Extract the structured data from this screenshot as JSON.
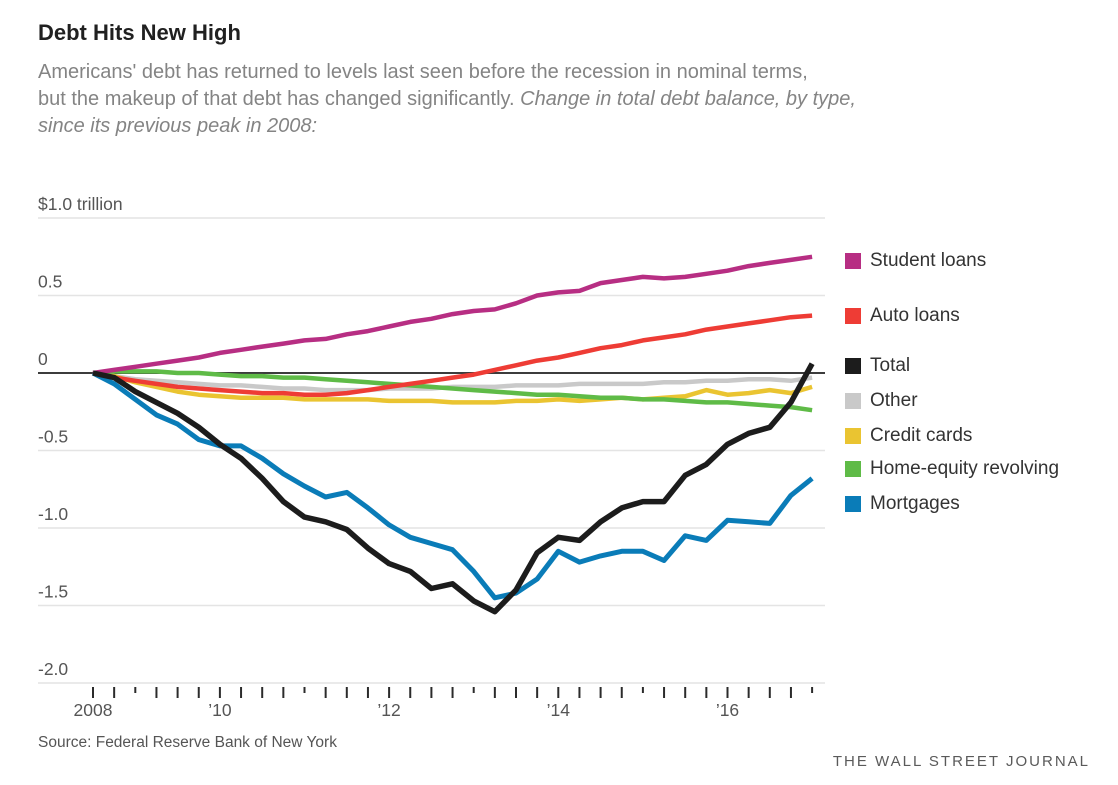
{
  "header": {
    "title": "Debt Hits New High",
    "subtitle_lines": [
      {
        "regular": "Americans' debt has returned to levels last seen before the recession in nominal terms,",
        "italic": ""
      },
      {
        "regular": "but the makeup of that debt has changed significantly. ",
        "italic": "Change in total debt balance, by type,"
      },
      {
        "regular": "",
        "italic": "since its previous peak in 2008:"
      }
    ]
  },
  "chart_data": {
    "type": "line",
    "title": "Debt Hits New High",
    "unit": "trillions of U.S. dollars, change since previous peak in 2008",
    "ylim": [
      -2.0,
      1.0
    ],
    "grid": "horizontal",
    "legend_position": "right",
    "quarters": [
      "2008 Q3",
      "2008 Q4",
      "2009 Q1",
      "2009 Q2",
      "2009 Q3",
      "2009 Q4",
      "2010 Q1",
      "2010 Q2",
      "2010 Q3",
      "2010 Q4",
      "2011 Q1",
      "2011 Q2",
      "2011 Q3",
      "2011 Q4",
      "2012 Q1",
      "2012 Q2",
      "2012 Q3",
      "2012 Q4",
      "2013 Q1",
      "2013 Q2",
      "2013 Q3",
      "2013 Q4",
      "2014 Q1",
      "2014 Q2",
      "2014 Q3",
      "2014 Q4",
      "2015 Q1",
      "2015 Q2",
      "2015 Q3",
      "2015 Q4",
      "2016 Q1",
      "2016 Q2",
      "2016 Q3",
      "2016 Q4",
      "2017 Q1"
    ],
    "y_ticks": [
      {
        "label": "$1.0 trillion",
        "value": 1.0
      },
      {
        "label": "0.5",
        "value": 0.5
      },
      {
        "label": "0",
        "value": 0
      },
      {
        "label": "-0.5",
        "value": -0.5
      },
      {
        "label": "-1.0",
        "value": -1.0
      },
      {
        "label": "-1.5",
        "value": -1.5
      },
      {
        "label": "-2.0",
        "value": -2.0
      }
    ],
    "x_ticks": [
      {
        "label": "2008",
        "index": 0
      },
      {
        "label": "’10",
        "index": 6
      },
      {
        "label": "’12",
        "index": 14
      },
      {
        "label": "’14",
        "index": 22
      },
      {
        "label": "’16",
        "index": 30
      }
    ],
    "series": [
      {
        "name": "Student loans",
        "color": "#B72E83",
        "values": [
          0,
          0.02,
          0.04,
          0.06,
          0.08,
          0.1,
          0.13,
          0.15,
          0.17,
          0.19,
          0.21,
          0.22,
          0.25,
          0.27,
          0.3,
          0.33,
          0.35,
          0.38,
          0.4,
          0.41,
          0.45,
          0.5,
          0.52,
          0.53,
          0.58,
          0.6,
          0.62,
          0.61,
          0.62,
          0.64,
          0.66,
          0.69,
          0.71,
          0.73,
          0.75
        ]
      },
      {
        "name": "Auto loans",
        "color": "#EE3C35",
        "values": [
          0,
          -0.03,
          -0.05,
          -0.07,
          -0.09,
          -0.1,
          -0.11,
          -0.12,
          -0.13,
          -0.13,
          -0.14,
          -0.14,
          -0.13,
          -0.11,
          -0.09,
          -0.07,
          -0.05,
          -0.03,
          -0.01,
          0.02,
          0.05,
          0.08,
          0.1,
          0.13,
          0.16,
          0.18,
          0.21,
          0.23,
          0.25,
          0.28,
          0.3,
          0.32,
          0.34,
          0.36,
          0.37
        ]
      },
      {
        "name": "Total",
        "color": "#1C1C1C",
        "values": [
          0,
          -0.03,
          -0.12,
          -0.19,
          -0.26,
          -0.35,
          -0.46,
          -0.55,
          -0.68,
          -0.83,
          -0.93,
          -0.96,
          -1.01,
          -1.13,
          -1.23,
          -1.28,
          -1.39,
          -1.36,
          -1.47,
          -1.54,
          -1.4,
          -1.16,
          -1.06,
          -1.08,
          -0.96,
          -0.87,
          -0.83,
          -0.83,
          -0.66,
          -0.59,
          -0.46,
          -0.39,
          -0.35,
          -0.19,
          0.06
        ]
      },
      {
        "name": "Other",
        "color": "#C9C9C9",
        "values": [
          0,
          -0.02,
          -0.04,
          -0.05,
          -0.06,
          -0.07,
          -0.08,
          -0.08,
          -0.09,
          -0.1,
          -0.1,
          -0.11,
          -0.11,
          -0.11,
          -0.1,
          -0.1,
          -0.1,
          -0.09,
          -0.09,
          -0.09,
          -0.08,
          -0.08,
          -0.08,
          -0.07,
          -0.07,
          -0.07,
          -0.07,
          -0.06,
          -0.06,
          -0.05,
          -0.05,
          -0.04,
          -0.04,
          -0.05,
          -0.03
        ]
      },
      {
        "name": "Credit cards",
        "color": "#EAC431",
        "values": [
          0,
          -0.02,
          -0.06,
          -0.09,
          -0.12,
          -0.14,
          -0.15,
          -0.16,
          -0.16,
          -0.16,
          -0.17,
          -0.17,
          -0.17,
          -0.17,
          -0.18,
          -0.18,
          -0.18,
          -0.19,
          -0.19,
          -0.19,
          -0.18,
          -0.18,
          -0.17,
          -0.18,
          -0.17,
          -0.16,
          -0.17,
          -0.16,
          -0.15,
          -0.11,
          -0.14,
          -0.13,
          -0.11,
          -0.13,
          -0.09
        ]
      },
      {
        "name": "Home-equity revolving",
        "color": "#5FBB47",
        "values": [
          0,
          0.01,
          0.01,
          0.01,
          0,
          0,
          -0.01,
          -0.02,
          -0.02,
          -0.03,
          -0.03,
          -0.04,
          -0.05,
          -0.06,
          -0.07,
          -0.08,
          -0.09,
          -0.1,
          -0.11,
          -0.12,
          -0.13,
          -0.14,
          -0.14,
          -0.15,
          -0.16,
          -0.16,
          -0.17,
          -0.17,
          -0.18,
          -0.19,
          -0.19,
          -0.2,
          -0.21,
          -0.22,
          -0.24
        ]
      },
      {
        "name": "Mortgages",
        "color": "#0A7CB8",
        "values": [
          0,
          -0.07,
          -0.17,
          -0.27,
          -0.33,
          -0.43,
          -0.47,
          -0.47,
          -0.55,
          -0.65,
          -0.73,
          -0.8,
          -0.77,
          -0.87,
          -0.98,
          -1.06,
          -1.1,
          -1.14,
          -1.28,
          -1.45,
          -1.42,
          -1.33,
          -1.15,
          -1.22,
          -1.18,
          -1.15,
          -1.15,
          -1.21,
          -1.05,
          -1.08,
          -0.95,
          -0.96,
          -0.97,
          -0.79,
          -0.68
        ]
      }
    ]
  },
  "footer": {
    "source": "Source: Federal Reserve Bank of New York",
    "credit": "THE WALL STREET JOURNAL"
  }
}
